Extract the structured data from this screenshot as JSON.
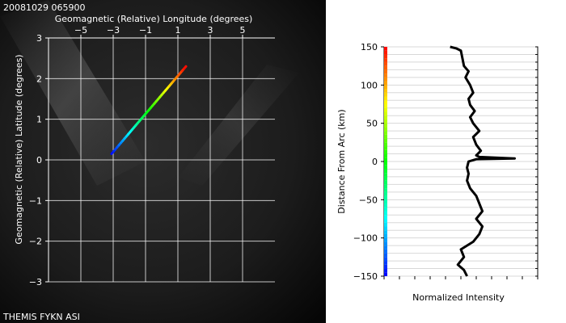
{
  "header": {
    "timestamp": "20081029 065900"
  },
  "footer": {
    "source": "THEMIS FYKN ASI"
  },
  "colors": {
    "trace": "#000000",
    "grid_left": "#ffffff",
    "grid_right": "#d8d8d8"
  },
  "chart_data": [
    {
      "type": "line",
      "xlabel": "Geomagnetic (Relative) Longitude (degrees)",
      "ylabel": "Geomagnetic (Relative) Latitude (degrees)",
      "x_ticks": [
        -5,
        -3,
        -1,
        1,
        3,
        5
      ],
      "y_ticks": [
        3,
        2,
        1,
        0,
        -1,
        -2,
        -3
      ],
      "xlim": [
        -7,
        7
      ],
      "ylim": [
        -3,
        3
      ],
      "grid": true,
      "background": "all-sky camera image (dark)",
      "series": [
        {
          "color_scale": "rainbow (blue at start, red at end)",
          "x": [
            -3.1,
            1.5
          ],
          "y": [
            0.15,
            2.3
          ]
        }
      ]
    },
    {
      "type": "line",
      "xlabel": "Normalized Intensity",
      "ylabel": "Distance From Arc (km)",
      "y_ticks": [
        150,
        100,
        50,
        0,
        -50,
        -100,
        -150
      ],
      "ylim": [
        -150,
        150
      ],
      "xlim": [
        0,
        1
      ],
      "grid": true,
      "color_bar": "rainbow along y-axis (blue at -150, red at 150)",
      "series": [
        {
          "x": [
            0.43,
            0.47,
            0.5,
            0.51,
            0.52,
            0.55,
            0.53,
            0.56,
            0.58,
            0.55,
            0.56,
            0.59,
            0.56,
            0.58,
            0.62,
            0.58,
            0.6,
            0.63,
            0.6,
            0.62,
            0.85,
            0.6,
            0.55,
            0.54,
            0.55,
            0.54,
            0.56,
            0.6,
            0.62,
            0.64,
            0.6,
            0.64,
            0.62,
            0.58,
            0.5,
            0.52,
            0.48,
            0.52,
            0.54
          ],
          "y": [
            150,
            148,
            145,
            135,
            125,
            118,
            110,
            100,
            90,
            82,
            74,
            66,
            58,
            50,
            40,
            32,
            22,
            14,
            8,
            6,
            4,
            3,
            0,
            -8,
            -16,
            -25,
            -35,
            -45,
            -55,
            -65,
            -75,
            -85,
            -95,
            -105,
            -115,
            -125,
            -135,
            -142,
            -150
          ]
        }
      ]
    }
  ]
}
